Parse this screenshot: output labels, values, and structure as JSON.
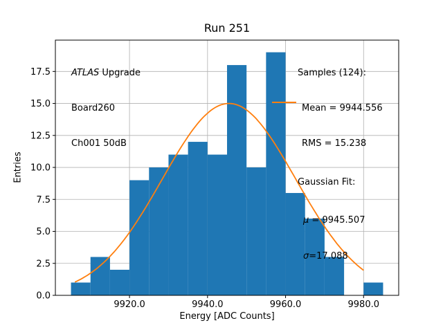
{
  "figure": {
    "background": "#ffffff"
  },
  "chart_data": {
    "type": "bar",
    "title": "Run 251",
    "xlabel": "Energy [ADC Counts]",
    "ylabel": "Entries",
    "bin_start": 9905,
    "bin_width": 5,
    "bin_edges": [
      9905,
      9910,
      9915,
      9920,
      9925,
      9930,
      9935,
      9940,
      9945,
      9950,
      9955,
      9960,
      9965,
      9970,
      9975,
      9980,
      9985
    ],
    "values": [
      1,
      3,
      2,
      9,
      10,
      11,
      12,
      11,
      18,
      10,
      19,
      8,
      6,
      3,
      0,
      1
    ],
    "xlim": [
      9901,
      9989
    ],
    "ylim": [
      0,
      19.95
    ],
    "xticks": [
      9920,
      9940,
      9960,
      9980
    ],
    "xtick_labels": [
      "9920.0",
      "9940.0",
      "9960.0",
      "9980.0"
    ],
    "yticks": [
      0,
      2.5,
      5,
      7.5,
      10,
      12.5,
      15,
      17.5
    ],
    "ytick_labels": [
      "0.0",
      "2.5",
      "5.0",
      "7.5",
      "10.0",
      "12.5",
      "15.0",
      "17.5"
    ],
    "grid": true,
    "legend_position": "none",
    "bar_color": "#1f77b4",
    "fit_color": "#ff7f0e",
    "grid_color": "#b0b0b0",
    "fit": {
      "type": "gaussian",
      "mu": 9945.507,
      "sigma": 17.088,
      "amplitude": 15.0,
      "x_range": [
        9906,
        9980
      ]
    }
  },
  "annotations": {
    "left": {
      "line1_italic": "ATLAS",
      "line1_rest": " Upgrade",
      "line2": "Board260",
      "line3": "Ch001 50dB"
    },
    "right": {
      "samples": "Samples (124):",
      "mean": "Mean = 9944.556",
      "rms": "RMS = 15.238",
      "fit_header": "Gaussian Fit:",
      "mu_symbol": "μ",
      "mu_value": " = 9945.507",
      "sigma_symbol": "σ",
      "sigma_value": "=17.088"
    }
  }
}
